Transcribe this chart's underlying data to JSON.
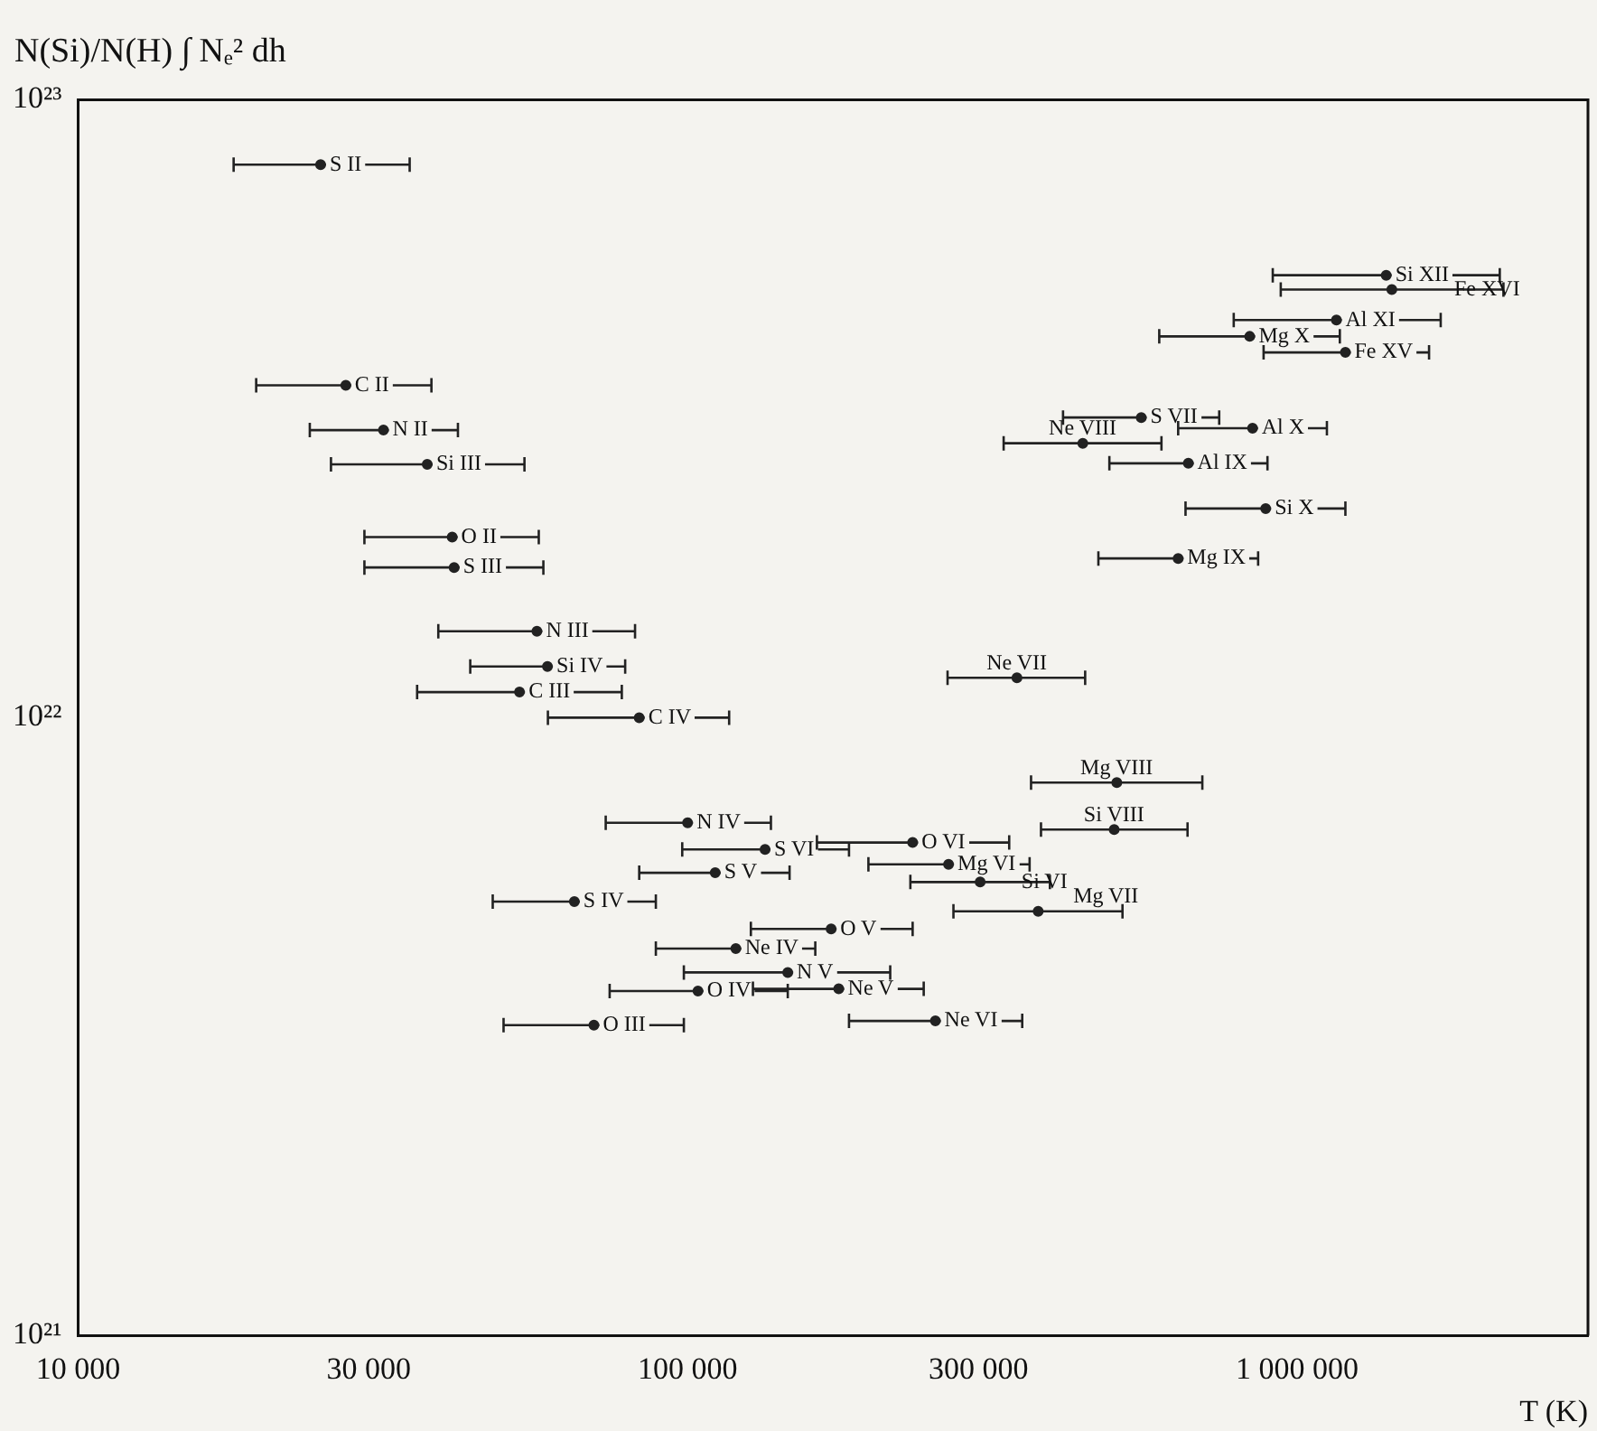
{
  "chart_data": {
    "type": "scatter",
    "xlabel": "T (K)",
    "ylabel": "N(Si)/N(H) ∫ Nₑ² dh",
    "log": "xy",
    "grid": false,
    "marker": "circle",
    "xlim": [
      10000,
      3000000
    ],
    "ylim": [
      1e+21,
      1e+23
    ],
    "xticks": [
      {
        "value": 10000,
        "label": "10 000"
      },
      {
        "value": 30000,
        "label": "30 000"
      },
      {
        "value": 100000,
        "label": "100 000"
      },
      {
        "value": 300000,
        "label": "300 000"
      },
      {
        "value": 1000000,
        "label": "1 000 000"
      }
    ],
    "yticks": [
      {
        "value": 1e+21,
        "label": "10²¹"
      },
      {
        "value": 1e+22,
        "label": "10²²"
      },
      {
        "value": 1e+23,
        "label": "10²³"
      }
    ],
    "series": [
      {
        "color": "#222222",
        "x": [
          25000,
          27500,
          31700,
          37400,
          41100,
          41400,
          56600,
          58900,
          53000,
          83300,
          347000,
          1400000,
          1430000,
          1160000,
          836000,
          1200000,
          555000,
          845000,
          445000,
          663000,
          888000,
          638000,
          506000,
          501000,
          100000,
          134000,
          234000,
          268000,
          111000,
          302000,
          65200,
          376000,
          172000,
          120000,
          146000,
          104000,
          177000,
          70200,
          255000
        ],
        "values": [
          7.85e+22,
          3.45e+22,
          2.92e+22,
          2.57e+22,
          1.96e+22,
          1.75e+22,
          1.38e+22,
          1.21e+22,
          1.1e+22,
          1e+22,
          1.16e+22,
          5.2e+22,
          4.93e+22,
          4.4e+22,
          4.14e+22,
          3.9e+22,
          3.06e+22,
          2.94e+22,
          2.78e+22,
          2.58e+22,
          2.18e+22,
          1.81e+22,
          7.85e+21,
          6.59e+21,
          6.76e+21,
          6.12e+21,
          6.28e+21,
          5.79e+21,
          5.61e+21,
          5.42e+21,
          5.04e+21,
          4.86e+21,
          4.55e+21,
          4.23e+21,
          3.87e+21,
          3.61e+21,
          3.64e+21,
          3.18e+21,
          3.23e+21
        ],
        "xerrors": [
          [
            18000,
            35000
          ],
          [
            19600,
            38000
          ],
          [
            24000,
            42000
          ],
          [
            26000,
            54000
          ],
          [
            29500,
            57000
          ],
          [
            29500,
            58000
          ],
          [
            39000,
            82000
          ],
          [
            44000,
            79000
          ],
          [
            36000,
            78000
          ],
          [
            59000,
            117000
          ],
          [
            267000,
            449000
          ],
          [
            912000,
            2150000
          ],
          [
            940000,
            2180000
          ],
          [
            787000,
            1720000
          ],
          [
            594000,
            1175000
          ],
          [
            881000,
            1646000
          ],
          [
            413000,
            745000
          ],
          [
            638000,
            1119000
          ],
          [
            330000,
            599000
          ],
          [
            492000,
            894000
          ],
          [
            656000,
            1200000
          ],
          [
            472000,
            863000
          ],
          [
            366000,
            699000
          ],
          [
            380000,
            661000
          ],
          [
            73400,
            137000
          ],
          [
            98000,
            184000
          ],
          [
            163000,
            337000
          ],
          [
            198000,
            364000
          ],
          [
            83300,
            147000
          ],
          [
            232000,
            393000
          ],
          [
            47900,
            88700
          ],
          [
            273000,
            517000
          ],
          [
            127000,
            234000
          ],
          [
            88700,
            162000
          ],
          [
            98600,
            215000
          ],
          [
            74500,
            146000
          ],
          [
            128000,
            244000
          ],
          [
            49900,
            98600
          ],
          [
            184000,
            354000
          ]
        ]
      }
    ],
    "annotations": [
      {
        "text": "S II",
        "x": 25000,
        "y": 7.85e+22
      },
      {
        "text": "C II",
        "x": 27500,
        "y": 3.45e+22
      },
      {
        "text": "N II",
        "x": 31700,
        "y": 2.92e+22
      },
      {
        "text": "Si III",
        "x": 37400,
        "y": 2.57e+22
      },
      {
        "text": "O II",
        "x": 41100,
        "y": 1.96e+22
      },
      {
        "text": "S III",
        "x": 41400,
        "y": 1.75e+22
      },
      {
        "text": "N III",
        "x": 56600,
        "y": 1.38e+22
      },
      {
        "text": "Si IV",
        "x": 58900,
        "y": 1.21e+22
      },
      {
        "text": "C III",
        "x": 53000,
        "y": 1.1e+22
      },
      {
        "text": "C IV",
        "x": 83300,
        "y": 1e+22
      },
      {
        "text": "Ne VII",
        "x": 347000,
        "y": 1.16e+22
      },
      {
        "text": "Si XII",
        "x": 1400000,
        "y": 5.2e+22
      },
      {
        "text": "Fe XVI",
        "x": 1430000,
        "y": 4.93e+22
      },
      {
        "text": "Al XI",
        "x": 1160000,
        "y": 4.4e+22
      },
      {
        "text": "Mg X",
        "x": 836000,
        "y": 4.14e+22
      },
      {
        "text": "Fe XV",
        "x": 1200000,
        "y": 3.9e+22
      },
      {
        "text": "S VII",
        "x": 555000,
        "y": 3.06e+22
      },
      {
        "text": "Al X",
        "x": 845000,
        "y": 2.94e+22
      },
      {
        "text": "Ne VIII",
        "x": 445000,
        "y": 2.78e+22
      },
      {
        "text": "Al IX",
        "x": 663000,
        "y": 2.58e+22
      },
      {
        "text": "Si X",
        "x": 888000,
        "y": 2.18e+22
      },
      {
        "text": "Mg IX",
        "x": 638000,
        "y": 1.81e+22
      },
      {
        "text": "Mg VIII",
        "x": 506000,
        "y": 7.85e+21
      },
      {
        "text": "Si VIII",
        "x": 501000,
        "y": 6.59e+21
      },
      {
        "text": "N IV",
        "x": 100000,
        "y": 6.76e+21
      },
      {
        "text": "S VI",
        "x": 134000,
        "y": 6.12e+21
      },
      {
        "text": "O VI",
        "x": 234000,
        "y": 6.28e+21
      },
      {
        "text": "Mg VI",
        "x": 268000,
        "y": 5.79e+21
      },
      {
        "text": "S V",
        "x": 111000,
        "y": 5.61e+21
      },
      {
        "text": "Si VI",
        "x": 302000,
        "y": 5.42e+21
      },
      {
        "text": "S IV",
        "x": 65200,
        "y": 5.04e+21
      },
      {
        "text": "Mg VII",
        "x": 376000,
        "y": 4.86e+21
      },
      {
        "text": "O V",
        "x": 172000,
        "y": 4.55e+21
      },
      {
        "text": "Ne IV",
        "x": 120000,
        "y": 4.23e+21
      },
      {
        "text": "N V",
        "x": 146000,
        "y": 3.87e+21
      },
      {
        "text": "O IV",
        "x": 104000,
        "y": 3.61e+21
      },
      {
        "text": "Ne V",
        "x": 177000,
        "y": 3.64e+21
      },
      {
        "text": "O III",
        "x": 70200,
        "y": 3.18e+21
      },
      {
        "text": "Ne VI",
        "x": 255000,
        "y": 3.23e+21
      }
    ]
  }
}
